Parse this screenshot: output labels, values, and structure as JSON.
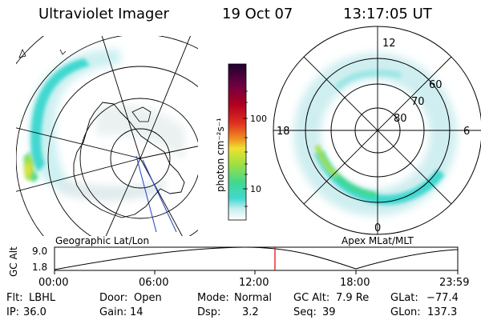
{
  "header": {
    "instrument": "Ultraviolet Imager",
    "date": "19 Oct 07",
    "time": "13:17:05 UT"
  },
  "left_panel": {
    "caption": "Geographic Lat/Lon"
  },
  "right_panel": {
    "caption": "Apex MLat/MLT",
    "mlt_labels": {
      "top": "12",
      "left": "18",
      "right": "6",
      "bottom": "0"
    },
    "lat_labels": [
      "60",
      "70",
      "80"
    ]
  },
  "colorbar": {
    "unit_label": "photon cm⁻²s⁻¹",
    "ticks": [
      "100",
      "10"
    ],
    "scale": "log",
    "colors": [
      "#ffffff",
      "#c8eef0",
      "#40d8d0",
      "#40d890",
      "#a0e040",
      "#f0e030",
      "#f09020",
      "#e03020",
      "#b00020",
      "#700040",
      "#200030"
    ]
  },
  "altitude_strip": {
    "axis_label": "GC Alt",
    "y_ticks": [
      "9.0",
      "1.8"
    ],
    "time_ticks": [
      "00:00",
      "06:00",
      "12:00",
      "18:00",
      "23:59"
    ],
    "current_time_marker": "13:17",
    "marker_color": "#e00000"
  },
  "status": {
    "filter": {
      "label": "Flt:",
      "value": "LBHL"
    },
    "ip": {
      "label": "IP:",
      "value": "36.0"
    },
    "door": {
      "label": "Door:",
      "value": "Open"
    },
    "gain": {
      "label": "Gain:",
      "value": "14"
    },
    "mode": {
      "label": "Mode:",
      "value": "Normal"
    },
    "dsp": {
      "label": "Dsp:",
      "value": "3.2"
    },
    "gc_alt": {
      "label": "GC Alt:",
      "value": "7.9 Re"
    },
    "seq": {
      "label": "Seq:",
      "value": "39"
    },
    "glat": {
      "label": "GLat:",
      "value": "−77.4"
    },
    "glon": {
      "label": "GLon:",
      "value": "137.3"
    }
  }
}
